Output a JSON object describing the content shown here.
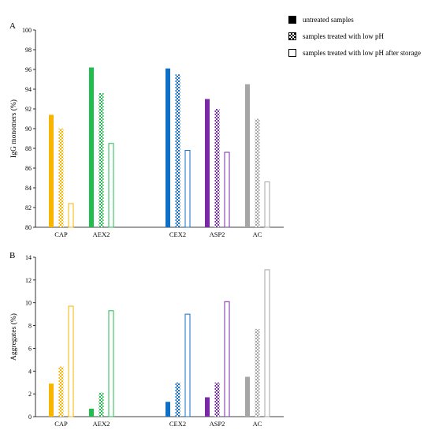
{
  "panel_a_label": "A",
  "panel_b_label": "B",
  "legend": {
    "items": [
      {
        "label": "untreated samples",
        "style": "solid"
      },
      {
        "label": "samples treated with low pH",
        "style": "checkered"
      },
      {
        "label": "samples treated with low pH after storage",
        "style": "outline"
      }
    ]
  },
  "colors": {
    "CAP": "#f7b500",
    "AEX2": "#1fbe4f",
    "CEX2": "#0f6fc6",
    "ASP2": "#7a2aa6",
    "AC": "#a6a6a6"
  },
  "chart_data": [
    {
      "type": "bar",
      "categories": [
        "CAP",
        "AEX2",
        "CEX2",
        "ASP2",
        "AC"
      ],
      "ylabel": "IgG monomers (%)",
      "xlabel": "",
      "ylim": [
        80,
        100
      ],
      "yticks": [
        80,
        82,
        84,
        86,
        88,
        90,
        92,
        94,
        96,
        98,
        100
      ],
      "series": [
        {
          "name": "untreated samples",
          "values": [
            91.4,
            96.2,
            96.1,
            93.0,
            94.5
          ]
        },
        {
          "name": "samples treated with low pH",
          "values": [
            90.0,
            93.6,
            95.5,
            92.0,
            91.0
          ]
        },
        {
          "name": "samples treated with low pH after storage",
          "values": [
            82.4,
            88.5,
            87.8,
            87.6,
            84.6
          ]
        }
      ]
    },
    {
      "type": "bar",
      "categories": [
        "CAP",
        "AEX2",
        "CEX2",
        "ASP2",
        "AC"
      ],
      "ylabel": "Aggregates (%)",
      "xlabel": "",
      "ylim": [
        0,
        14
      ],
      "yticks": [
        0,
        2,
        4,
        6,
        8,
        10,
        12,
        14
      ],
      "series": [
        {
          "name": "untreated samples",
          "values": [
            2.9,
            0.7,
            1.3,
            1.7,
            3.5
          ]
        },
        {
          "name": "samples treated with low pH",
          "values": [
            4.4,
            2.1,
            3.0,
            3.0,
            7.7
          ]
        },
        {
          "name": "samples treated with low pH after storage",
          "values": [
            9.7,
            9.3,
            9.0,
            10.1,
            12.9
          ]
        }
      ]
    }
  ]
}
